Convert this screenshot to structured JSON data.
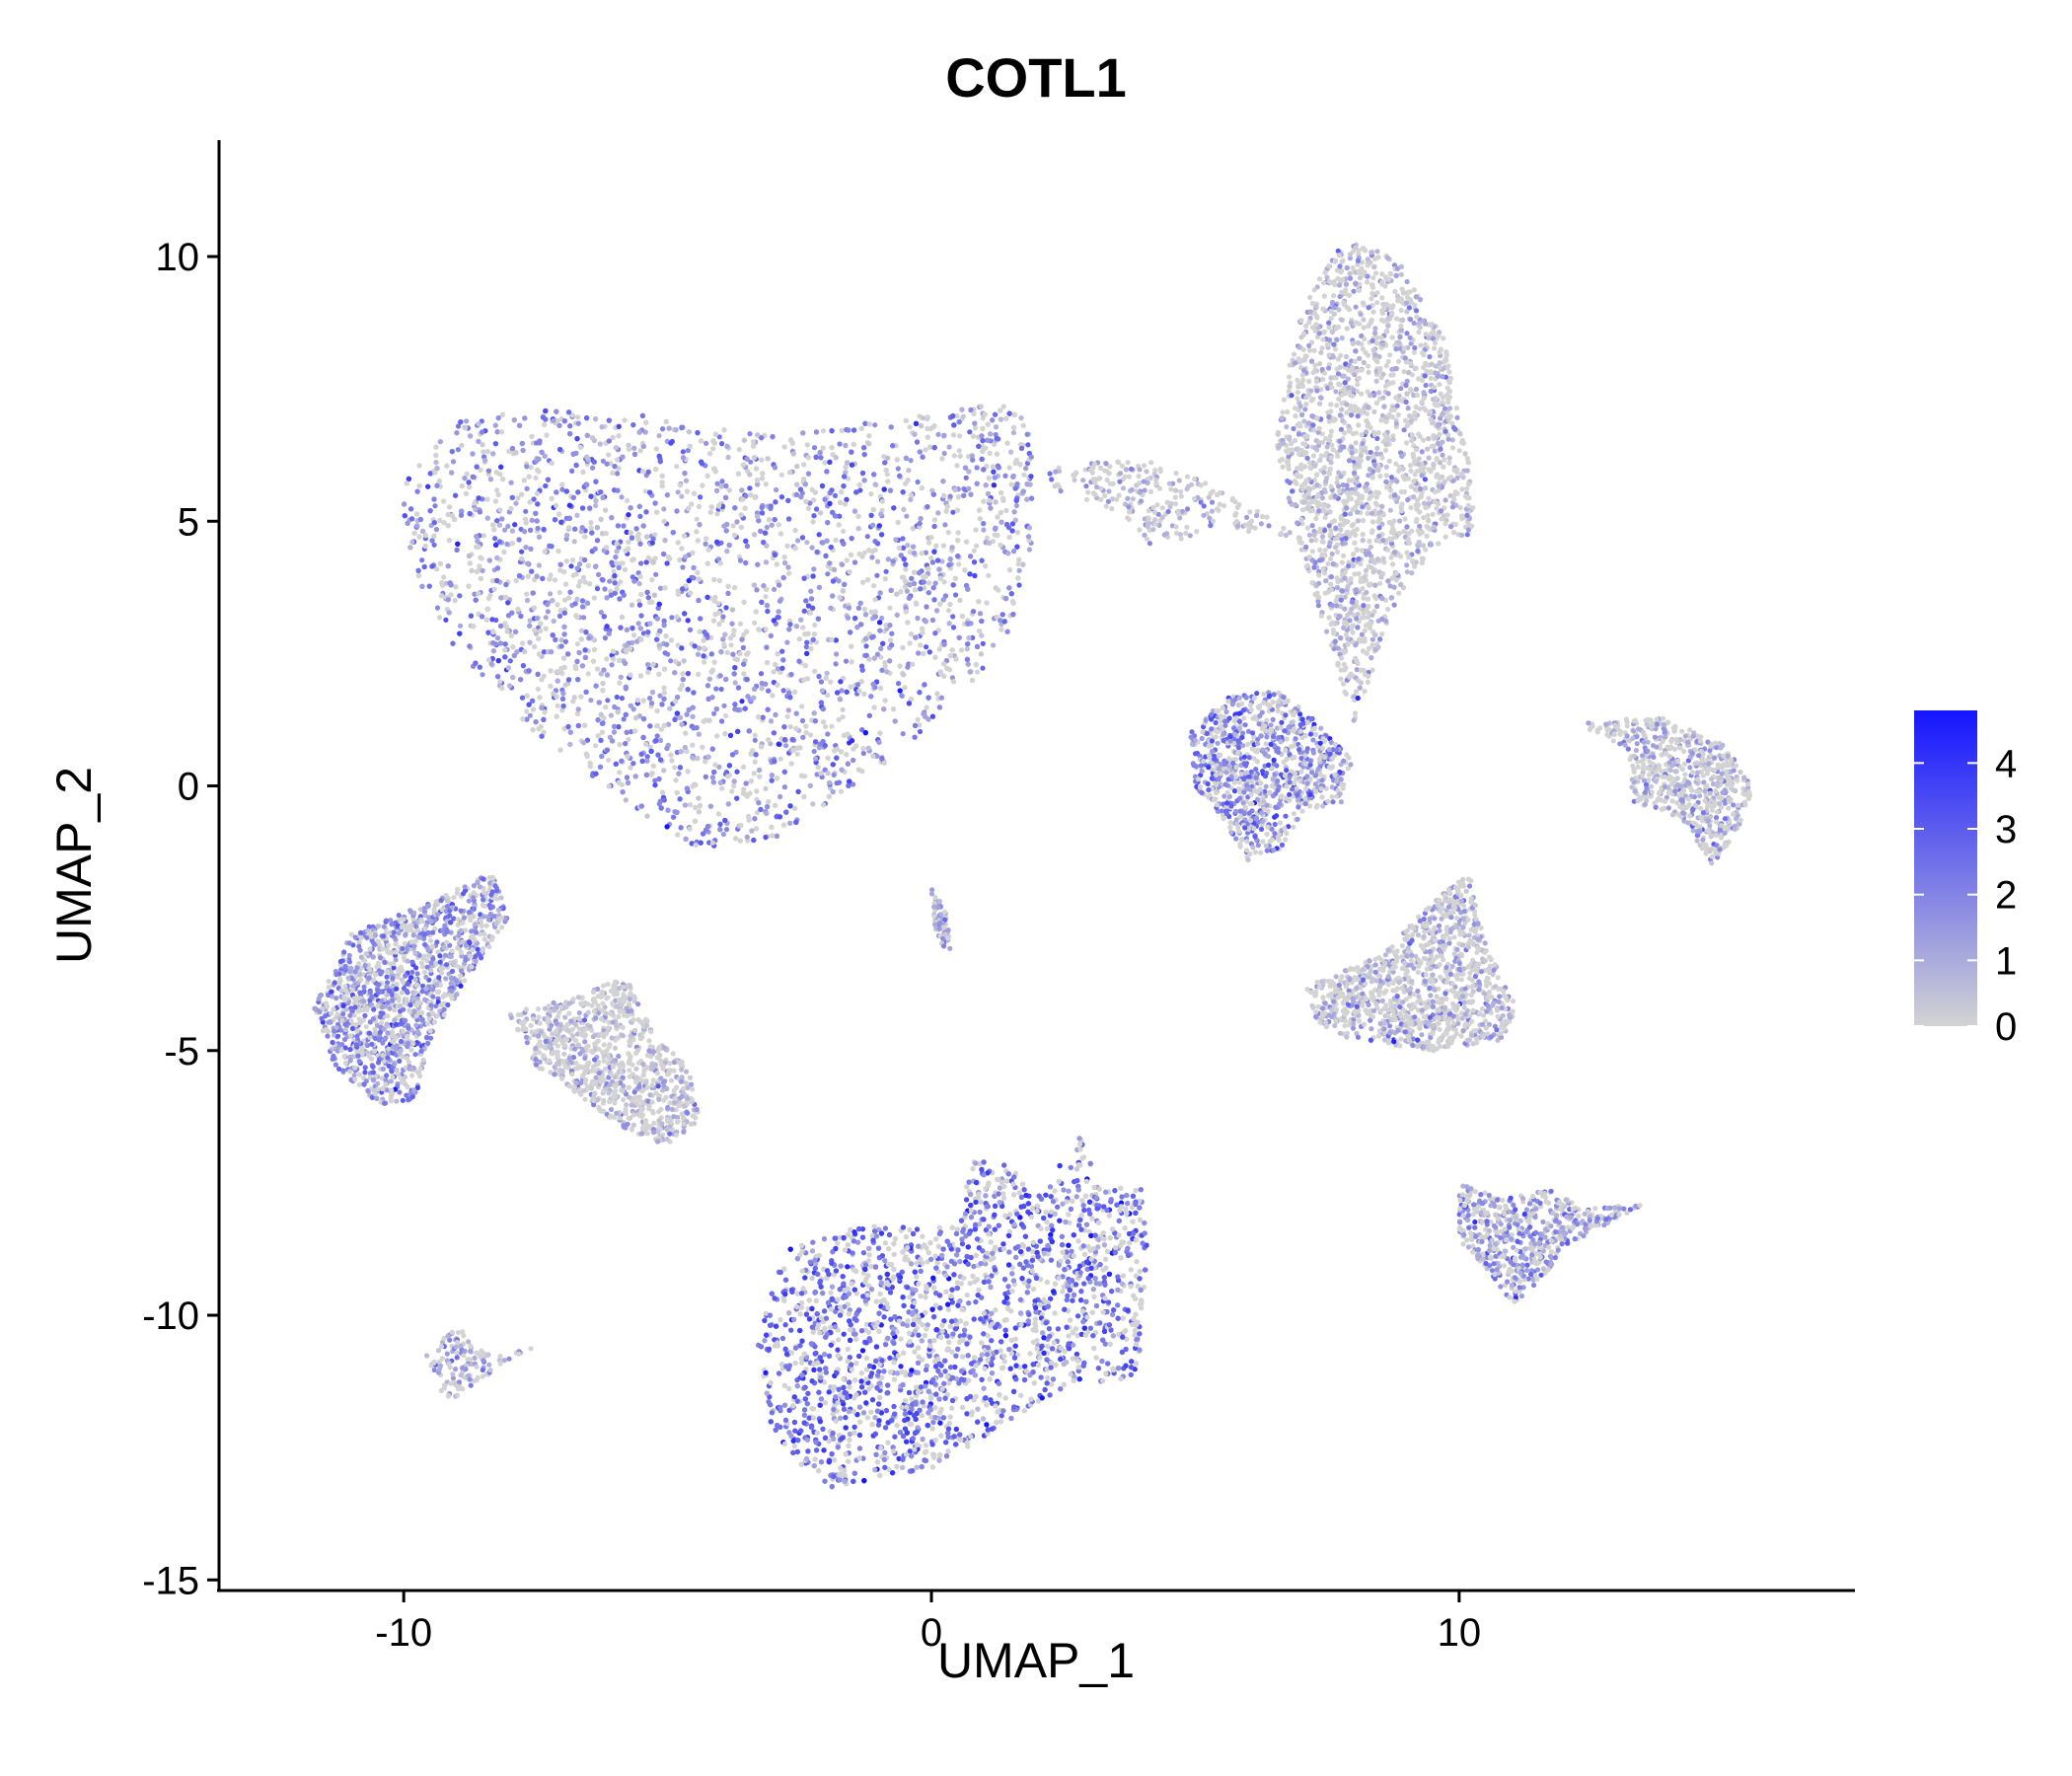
{
  "chart_data": {
    "type": "scatter",
    "title": "COTL1",
    "xlabel": "UMAP_1",
    "ylabel": "UMAP_2",
    "xlim": [
      -13.5,
      17.5
    ],
    "ylim": [
      -15.2,
      12.2
    ],
    "x_ticks": [
      -10,
      0,
      10
    ],
    "x_tick_labels": [
      "-10",
      "0",
      "10"
    ],
    "y_ticks": [
      10,
      5,
      0,
      -5,
      -10,
      -15
    ],
    "y_tick_labels": [
      "10",
      "5",
      "0",
      "-5",
      "-10",
      "-15"
    ],
    "grid": false,
    "color_scale": {
      "feature": "COTL1",
      "min": 0,
      "max": 4.8,
      "low_color": "#d3d3d3",
      "high_color": "#1515ff",
      "ticks": [
        0,
        1,
        2,
        3,
        4
      ],
      "tick_labels": [
        "0",
        "1",
        "2",
        "3",
        "4"
      ],
      "legend_position": "right"
    },
    "clusters": [
      {
        "name": "large-upper-left",
        "center": [
          -3.5,
          3.0
        ],
        "mean_expression": 1.8
      },
      {
        "name": "upper-right-tall",
        "center": [
          8.5,
          6.0
        ],
        "mean_expression": 0.5
      },
      {
        "name": "right-mid-small",
        "center": [
          6.5,
          0.3
        ],
        "mean_expression": 2.0
      },
      {
        "name": "far-right-arc",
        "center": [
          14.0,
          0.0
        ],
        "mean_expression": 0.7
      },
      {
        "name": "left-mid",
        "center": [
          -10.0,
          -4.0
        ],
        "mean_expression": 1.7
      },
      {
        "name": "left-mid-grey",
        "center": [
          -6.5,
          -5.2
        ],
        "mean_expression": 0.4
      },
      {
        "name": "center-tiny",
        "center": [
          0.2,
          -2.8
        ],
        "mean_expression": 1.2
      },
      {
        "name": "right-lower-mid",
        "center": [
          9.5,
          -4.0
        ],
        "mean_expression": 0.6
      },
      {
        "name": "lower-large",
        "center": [
          0.5,
          -10.5
        ],
        "mean_expression": 2.6
      },
      {
        "name": "lower-right-small",
        "center": [
          11.0,
          -8.5
        ],
        "mean_expression": 1.4
      },
      {
        "name": "lower-left-tiny",
        "center": [
          -9.0,
          -11.0
        ],
        "mean_expression": 1.0
      },
      {
        "name": "upper-mid-bridge",
        "center": [
          4.0,
          5.5
        ],
        "mean_expression": 0.6
      }
    ]
  }
}
